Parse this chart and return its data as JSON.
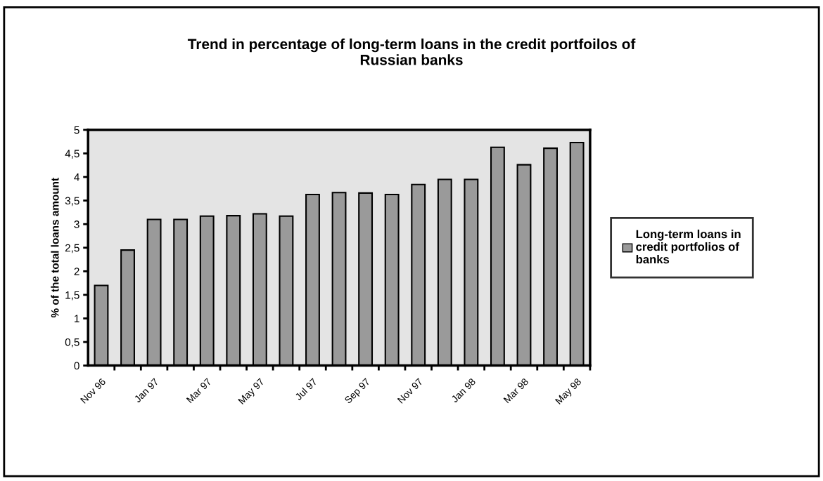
{
  "chart_data": {
    "type": "bar",
    "title": "Trend in percentage of long-term loans in the credit portfoilos of\nRussian banks",
    "ylabel": "% of the total loans amount",
    "categories": [
      "Nov 96",
      null,
      "Jan 97",
      null,
      "Mar 97",
      null,
      "May 97",
      null,
      "Jul 97",
      null,
      "Sep 97",
      null,
      "Nov 97",
      null,
      "Jan 98",
      null,
      "Mar 98",
      null,
      "May 98"
    ],
    "series": [
      {
        "name": "Long-term loans in\ncredit portfolios of\nbanks",
        "color": "#9a9a9a",
        "values": [
          1.7,
          2.45,
          3.1,
          3.1,
          3.17,
          3.18,
          3.22,
          3.17,
          3.63,
          3.67,
          3.66,
          3.63,
          3.84,
          3.95,
          3.95,
          4.63,
          4.26,
          4.61,
          4.73
        ]
      }
    ],
    "ylim": [
      0,
      5
    ],
    "yticks": [
      0,
      {
        "value": 0.5,
        "label": "0,5"
      },
      1,
      {
        "value": 1.5,
        "label": "1,5"
      },
      2,
      {
        "value": 2.5,
        "label": "2,5"
      },
      3,
      {
        "value": 3.5,
        "label": "3,5"
      },
      4,
      {
        "value": 4.5,
        "label": "4,5"
      },
      5
    ],
    "grid": false,
    "legend": "right"
  }
}
